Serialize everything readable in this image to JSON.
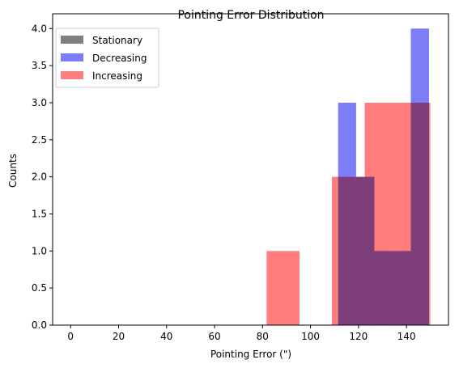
{
  "chart_data": {
    "type": "bar",
    "title": "Pointing Error Distribution",
    "xlabel": "Pointing Error (\")",
    "ylabel": "Counts",
    "xlim": [
      -7.5,
      157.5
    ],
    "ylim": [
      0,
      4.2
    ],
    "xticks": [
      0,
      20,
      40,
      60,
      80,
      100,
      120,
      140
    ],
    "yticks": [
      0.0,
      0.5,
      1.0,
      1.5,
      2.0,
      2.5,
      3.0,
      3.5,
      4.0
    ],
    "xtick_labels": [
      "0",
      "20",
      "40",
      "60",
      "80",
      "100",
      "120",
      "140"
    ],
    "ytick_labels": [
      "0.0",
      "0.5",
      "1.0",
      "1.5",
      "2.0",
      "2.5",
      "3.0",
      "3.5",
      "4.0"
    ],
    "legend_position": "top-left",
    "series": [
      {
        "name": "Stationary",
        "color": "#808080",
        "bins": []
      },
      {
        "name": "Decreasing",
        "color": "#7d7df8",
        "bins": [
          {
            "x0": 111.5,
            "x1": 119.0,
            "count": 3
          },
          {
            "x0": 119.0,
            "x1": 126.6,
            "count": 2
          },
          {
            "x0": 126.6,
            "x1": 134.2,
            "count": 1
          },
          {
            "x0": 134.2,
            "x1": 141.8,
            "count": 1
          },
          {
            "x0": 141.8,
            "x1": 149.4,
            "count": 4
          }
        ]
      },
      {
        "name": "Increasing",
        "color": "#ff7d7d",
        "bins": [
          {
            "x0": 81.7,
            "x1": 95.4,
            "count": 1
          },
          {
            "x0": 108.9,
            "x1": 122.6,
            "count": 2
          },
          {
            "x0": 122.6,
            "x1": 136.2,
            "count": 3
          },
          {
            "x0": 136.2,
            "x1": 149.9,
            "count": 3
          }
        ]
      }
    ]
  }
}
